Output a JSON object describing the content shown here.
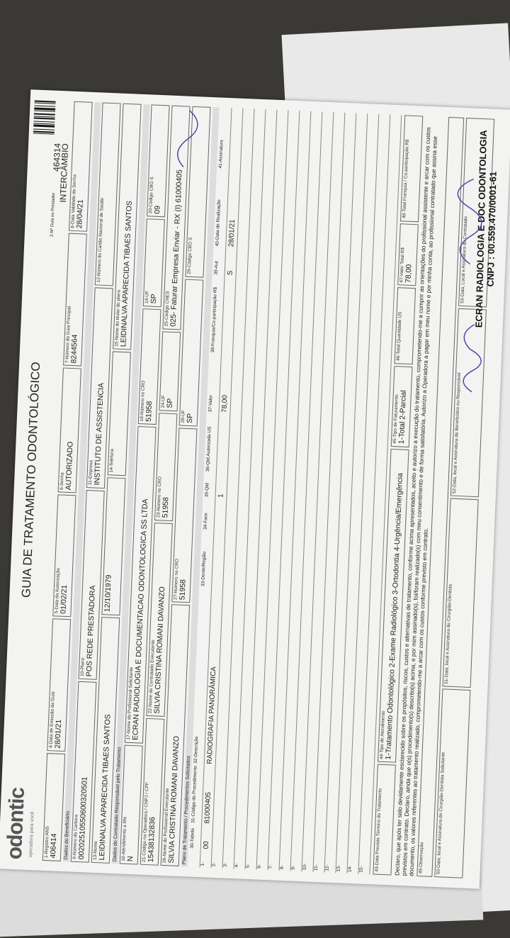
{
  "header": {
    "logo": "odontic",
    "logo_tagline": "operadora para você",
    "title": "GUIA DE TRATAMENTO ODONTOLÓGICO",
    "guide_label": "2-Nº Guia no Prestador",
    "guide_number": "464314",
    "guide_type": "INTERCÂMBIO"
  },
  "field_rows": [
    {
      "fields": [
        {
          "label": "1-Registro ANS",
          "value": "406414"
        },
        {
          "label": "4-Data de Emissão da Guia",
          "value": "28/01/21"
        },
        {
          "label": "5-Data da Autorização",
          "value": "01/02/21"
        },
        {
          "label": "6-Senha",
          "value": "AUTORIZADO"
        },
        {
          "label": "7-Número da Guia Principal",
          "value": "8244564"
        },
        {
          "label": "8-Data Validade da Senha",
          "value": "28/04/21"
        }
      ]
    },
    {
      "section": "Dados do Beneficiário"
    },
    {
      "fields": [
        {
          "label": "9-Número da Carteira",
          "value": "00202510550600320501"
        },
        {
          "label": "10-Plano",
          "value": "POS REDE PRESTADORA"
        },
        {
          "label": "11-Empresa",
          "value": "INSTITUTO DE ASSISTENCIA"
        },
        {
          "label": "12-Número do Cartão Nacional de Saúde"
        }
      ]
    },
    {
      "fields": [
        {
          "label": "13-Nome",
          "value": "LEIDINALVA APARECIDA TIBAES SANTOS"
        },
        {
          "value": "12/10/1979"
        },
        {
          "label": "14-Telefone"
        },
        {
          "label": "15-Nome do titular do plano",
          "value": "LEIDINALVA APARECIDA TIBAES SANTOS"
        }
      ]
    },
    {
      "section": "Dados do Contratado Responsável pelo Tratamento"
    },
    {
      "fields": [
        {
          "label": "16-Atendimento a RN",
          "value": "N"
        },
        {
          "label": "17-Nome do Profissional Solicitante",
          "value": "ECRAN RADIOLOGIA E DOCUMENTACAO ODONTOLOGICA SS LTDA"
        },
        {
          "label": "18-Número no CRO",
          "value": "51958"
        },
        {
          "label": "19-UF",
          "value": "SP"
        },
        {
          "label": "20-Código CBO S",
          "value": "09"
        }
      ]
    },
    {
      "fields": [
        {
          "label": "21-Código na Operadora / CNPJ / CPF",
          "value": "15438132836"
        },
        {
          "label": "22-Nome do Contratado Executante",
          "value": "SILVIA CRISTINA ROMANI DAVANZO"
        },
        {
          "label": "23-Número no CRO",
          "value": "51958"
        },
        {
          "label": "24-UF",
          "value": "SP"
        },
        {
          "label": "25-Código CNES",
          "value": "025- Faturar Empresa Enviar - RX (I) 61000405"
        }
      ]
    },
    {
      "fields": [
        {
          "label": "26-Nome do Profissional Executante",
          "value": "SILVIA CRISTINA ROMANI DAVANZO"
        },
        {
          "label": "27-Número no CRO",
          "value": "51958"
        },
        {
          "label": "28-UF",
          "value": "SP"
        },
        {
          "label": "29-Código CBO S"
        }
      ]
    }
  ],
  "procedures": {
    "title": "Plano de Tratamento / Procedimentos Solicitados",
    "columns": [
      "30-Tabela",
      "31-Código do Procedimento",
      "32-Descrição",
      "33-Dente/Região",
      "34-Face",
      "35-Qtd",
      "36-Qtd.Autorizada US",
      "37-Valor",
      "38-Franquia/Co-participação R$",
      "39-Aut",
      "40-Data de Realização",
      "41-Assinatura"
    ],
    "rows": [
      {
        "number": "1-",
        "cells": [
          "00",
          "81000405",
          "RADIOGRAFIA PANORÂMICA",
          null,
          null,
          "1",
          null,
          "78,00",
          null,
          "S",
          "28/01/21",
          null
        ]
      },
      {
        "number": "2-"
      },
      {
        "number": "3-"
      },
      {
        "number": "4-"
      },
      {
        "number": "5-"
      },
      {
        "number": "6-"
      },
      {
        "number": "7-"
      },
      {
        "number": "8-"
      },
      {
        "number": "9-"
      },
      {
        "number": "10-"
      },
      {
        "number": "11-"
      },
      {
        "number": "12-"
      },
      {
        "number": "13-"
      },
      {
        "number": "14-"
      },
      {
        "number": "15-"
      }
    ]
  },
  "footer_fields": [
    {
      "label": "43-Data Prevista Término do Tratamento"
    },
    {
      "label": "44-Tipo de Atendimento",
      "value": "1-Tratamento Odontológico 2-Exame Radiológico 3-Ortodontia 4-Urgência/Emergência"
    },
    {
      "label": "45-Tipo de Faturamento",
      "value": "1-Total 2-Parcial"
    },
    {
      "label": "46-Total Quantidade US"
    },
    {
      "label": "47-Valor Total R$",
      "value": "78,00"
    },
    {
      "label": "48-Total Franquia / Co-participação R$"
    }
  ],
  "declaration": "Declaro, que após ter sido devidamente esclarecido sobre os propósitos, riscos, custos e alternativas de tratamento, conforme acima apresentados, aceito e autorizo a execução do tratamento, comprometendo-me a cumprir as orientações do profissional assistente e arcar com os custos previstos em contrato. Declaro, ainda que o(s) procedimento(s) descrito(s) acima, e por mim assinado(s), foi/foram realizado(s) com meu consentimento e de forma satisfatória. Autorizo a Operadora a pagar em meu nome e por minha conta, ao profissional contratado que assina esse documento, os valores referentes ao tratamento realizado, comprometendo-me a arcar com os custos conforme previsto em contrato.",
  "observation": "49-Observação",
  "signatures": [
    "50-Data, local e Assinatura do Cirurgião-Dentista Solicitante",
    "51-Data, local e Assinatura do Cirurgião-Dentista",
    "52-Data, local e Assinatura do Beneficiário ou Responsável",
    "53-Data, Local e Assinatura do Contratado"
  ],
  "stamp": [
    "ECRAN RADIOLOGIA E DOC ODONTOLOGIA",
    "CNPJ : 00.559.470/0001-61"
  ]
}
